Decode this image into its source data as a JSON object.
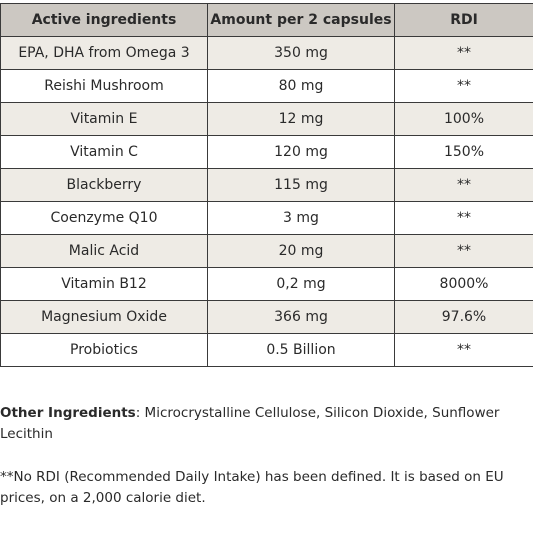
{
  "table": {
    "headers": [
      "Active ingredients",
      "Amount per 2 capsules",
      "RDI"
    ],
    "rows": [
      [
        "EPA, DHA from Omega 3",
        "350 mg",
        "**"
      ],
      [
        "Reishi Mushroom",
        "80 mg",
        "**"
      ],
      [
        "Vitamin E",
        "12 mg",
        "100%"
      ],
      [
        "Vitamin C",
        "120 mg",
        "150%"
      ],
      [
        "Blackberry",
        "115 mg",
        "**"
      ],
      [
        "Coenzyme Q10",
        "3 mg",
        "**"
      ],
      [
        "Malic Acid",
        "20 mg",
        "**"
      ],
      [
        "Vitamin B12",
        "0,2 mg",
        "8000%"
      ],
      [
        "Magnesium Oxide",
        "366 mg",
        "97.6%"
      ],
      [
        "Probiotics",
        "0.5 Billion",
        "**"
      ]
    ]
  },
  "other_ingredients": {
    "label": "Other Ingredients",
    "text": ": Microcrystalline Cellulose, Silicon Dioxide, Sunflower Lecithin"
  },
  "footnote": "**No RDI (Recommended Daily Intake) has been defined. It is based on EU prices, on a 2,000 calorie diet.",
  "colors": {
    "header_bg": "#ccc8c2",
    "striped_row_bg": "#eeebe5",
    "border": "#3a3a3a",
    "text": "#2a2a2a"
  }
}
